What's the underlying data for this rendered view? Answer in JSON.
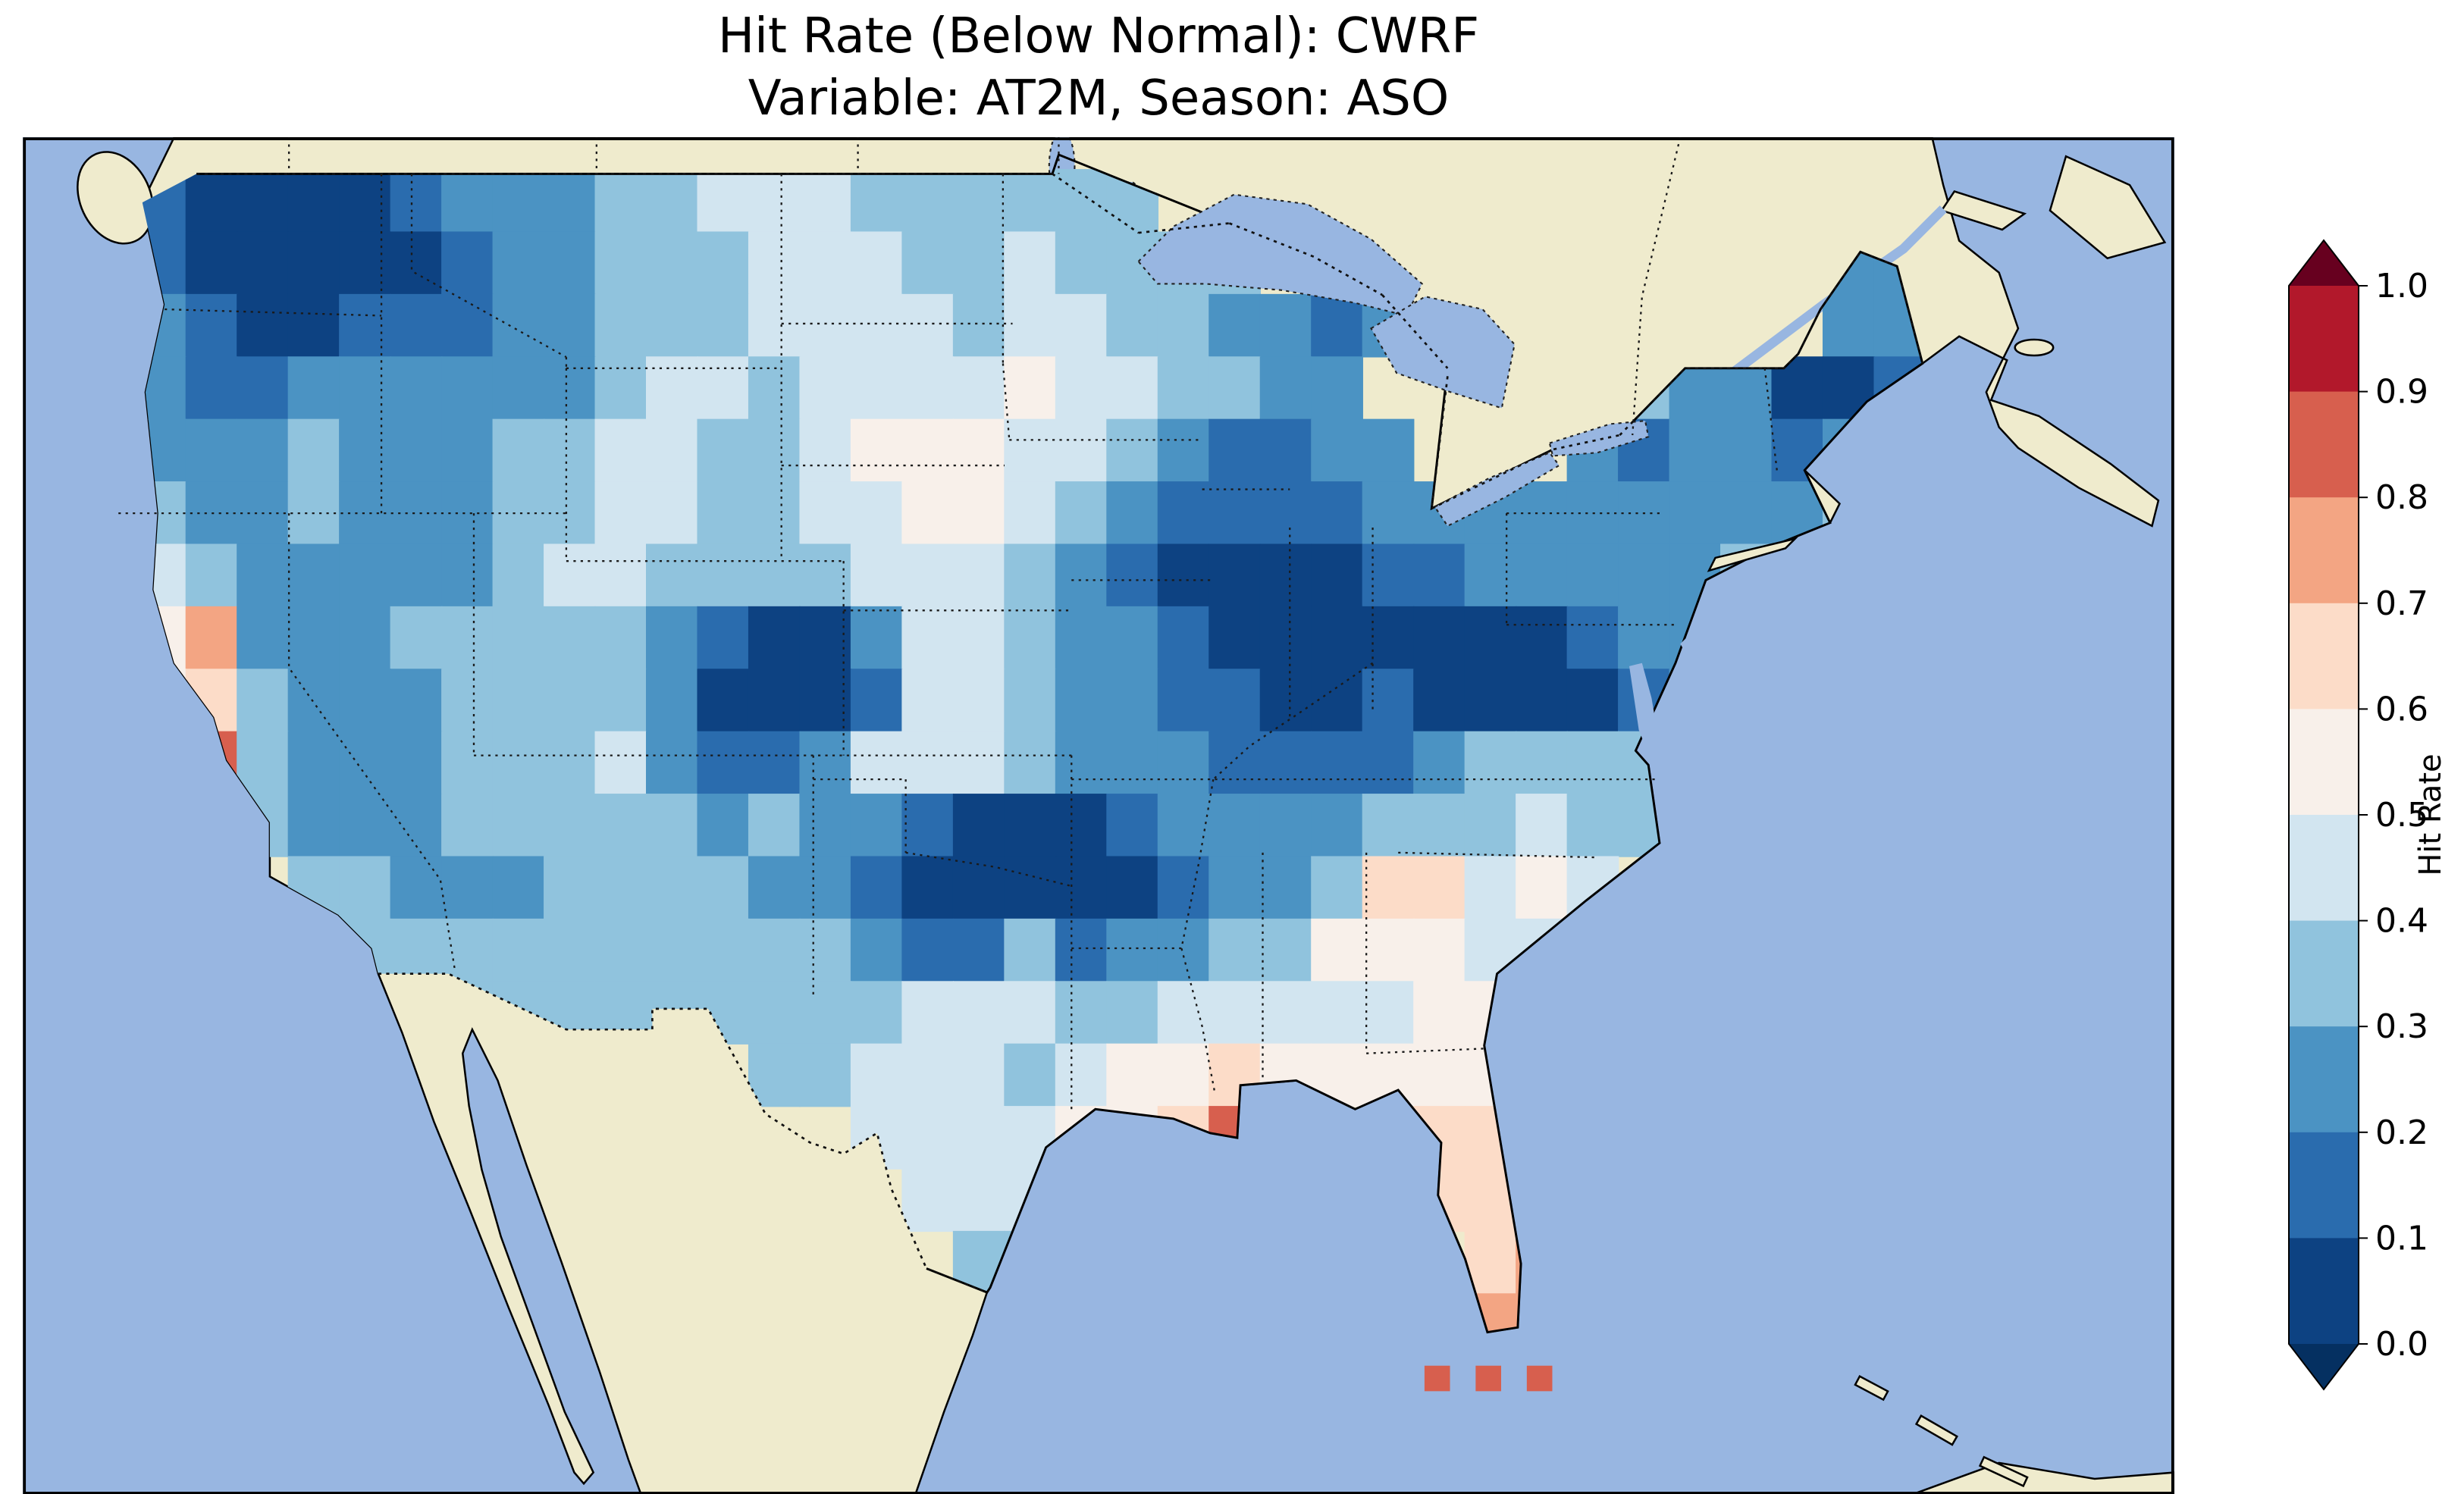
{
  "title": {
    "line1": "Hit Rate (Below Normal): CWRF",
    "line2": "Variable: AT2M, Season: ASO"
  },
  "colorbar": {
    "label": "Hit Rate",
    "ticks": [
      "1.0",
      "0.9",
      "0.8",
      "0.7",
      "0.6",
      "0.5",
      "0.4",
      "0.3",
      "0.2",
      "0.1",
      "0.0"
    ]
  },
  "map": {
    "ocean_color": "#98b6e1",
    "land_color": "#efebcd",
    "lake_color": "#98b6e1"
  },
  "chart_data": {
    "type": "heatmap",
    "title": "Hit Rate (Below Normal): CWRF",
    "subtitle": "Variable: AT2M, Season: ASO",
    "model": "CWRF",
    "metric": "Hit Rate (Below Normal)",
    "variable": "AT2M",
    "season": "ASO",
    "colorbar_label": "Hit Rate",
    "value_range": [
      0.0,
      1.0
    ],
    "bin_width": 0.1,
    "legend_position": "right",
    "geographic_extent": "Contiguous United States (~125W-67W, ~24N-49.5N), surrounding Canada/Mexico masked beige, ocean light blue",
    "colors": [
      "#053061",
      "#0d4282",
      "#2a6cae",
      "#4b93c3",
      "#90c3dd",
      "#d2e5f0",
      "#f8f0ea",
      "#fcdcc8",
      "#f3a583",
      "#d75f4e",
      "#b2182b",
      "#67001f"
    ],
    "grid_encoding": "20 rows (north to south) x 36 cols (west to east) over CONUS; each char is the hit-rate decile bin (e.g. '3' = 0.3-0.4, '0' = 0.0-0.1 darkest blue, '8' = 0.8-0.9 red); '.' = outside model domain",
    "grid": [
      "10000122233444333333................",
      "1000001223334443343333...........222",
      "2100111223334444344332212........222",
      "211222222344344445443322.....3220012",
      "2223222334433455544321122...2122122.",
      "3223222334433445543211112222222223..",
      "43222223443333444321000011222223....",
      "57222333332100244322100000001222....",
      "56322233332000144322110010000123....",
      "6832223334211244432221111233333.....",
      "5532223333323221000122223334333.....",
      "...33222333322100000122366454.......",
      "....333333333321131223355544........",
      "......333333333444334444455.........",
      "............334443455655555.........",
      "..............44445568...666........",
      "...............444.......666........",
      "................33........67........",
      "................3.........77........",
      ".........................888........"
    ],
    "notable_features": [
      "Very dark blue (0.0-0.1) over Washington / N Idaho, central Colorado, Oklahoma-Arkansas, Ohio Valley and northern New England",
      "Salmon/red (0.6-0.9) over California Central Valley, northern Georgia, Gulf coast near the Mississippi delta, Florida peninsula and Keys"
    ]
  }
}
